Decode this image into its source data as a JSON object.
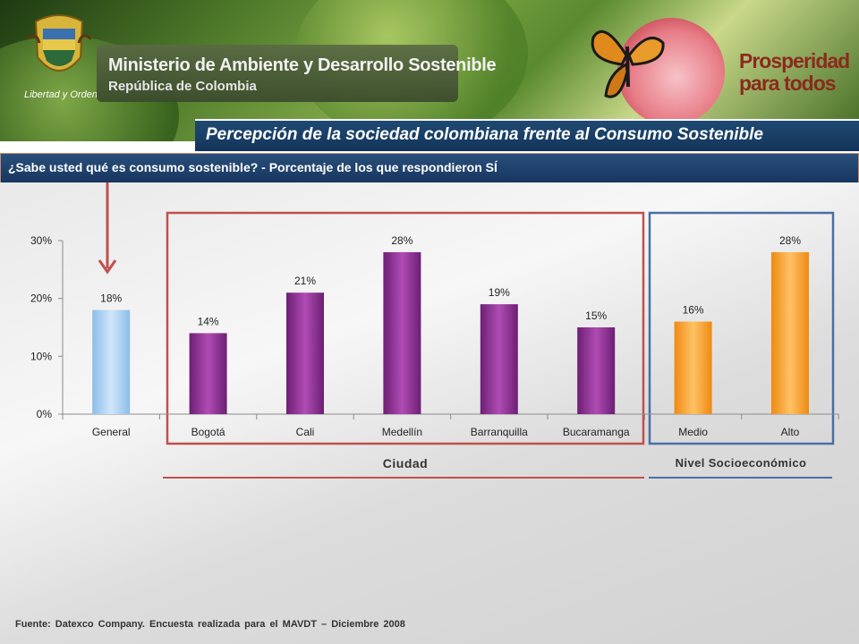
{
  "header": {
    "ministry_name": "Ministerio de Ambiente y Desarrollo Sostenible",
    "ministry_sub": "República de Colombia",
    "crest_motto": "Libertad y Orden",
    "slogan_line1": "Prosperidad",
    "slogan_line2": "para todos"
  },
  "title": "Percepción de la sociedad colombiana frente al Consumo Sostenible",
  "question": "¿Sabe usted qué es consumo sostenible? - Porcentaje de los que respondieron SÍ",
  "groups": {
    "ciudad": "Ciudad",
    "nivel": "Nivel Socioeconómico"
  },
  "source": "Fuente: Datexco Company. Encuesta realizada para el MAVDT – Diciembre 2008",
  "colors": {
    "general": "#a7d0f5",
    "ciudad": "#8e2f93",
    "nivel": "#f7a234",
    "ciudad_box": "#c0504d",
    "nivel_box": "#4a6fa5",
    "arrow": "#c0504d"
  },
  "chart_data": {
    "type": "bar",
    "categories": [
      "General",
      "Bogotá",
      "Cali",
      "Medellín",
      "Barranquilla",
      "Bucaramanga",
      "Medio",
      "Alto"
    ],
    "values": [
      18,
      14,
      21,
      28,
      19,
      15,
      16,
      28
    ],
    "value_labels": [
      "18%",
      "14%",
      "21%",
      "28%",
      "19%",
      "15%",
      "16%",
      "28%"
    ],
    "group_of": [
      "general",
      "ciudad",
      "ciudad",
      "ciudad",
      "ciudad",
      "ciudad",
      "nivel",
      "nivel"
    ],
    "yticks": [
      "0%",
      "10%",
      "20%",
      "30%"
    ],
    "ylim": [
      0,
      30
    ],
    "grid": false,
    "title": "",
    "xlabel": "",
    "ylabel": ""
  }
}
